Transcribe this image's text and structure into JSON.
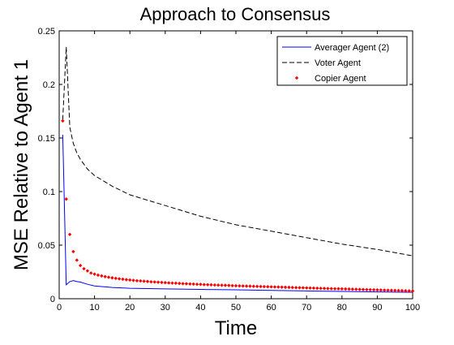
{
  "chart_data": {
    "type": "line",
    "title": "Approach to Consensus",
    "xlabel": "Time",
    "ylabel": "MSE Relative to Agent 1",
    "xlim": [
      0,
      100
    ],
    "ylim": [
      0,
      0.25
    ],
    "xticks": [
      0,
      10,
      20,
      30,
      40,
      50,
      60,
      70,
      80,
      90,
      100
    ],
    "yticks": [
      0,
      0.05,
      0.1,
      0.15,
      0.2,
      0.25
    ],
    "xtick_labels": [
      "0",
      "10",
      "20",
      "30",
      "40",
      "50",
      "60",
      "70",
      "80",
      "90",
      "100"
    ],
    "ytick_labels": [
      "0",
      "0.05",
      "0.1",
      "0.15",
      "0.2",
      "0.25"
    ],
    "grid": false,
    "legend_position": "top-right",
    "series": [
      {
        "name": "Averager Agent (2)",
        "style": "solid-line",
        "color": "#0000ff",
        "x": [
          1,
          2,
          3,
          4,
          5,
          6,
          8,
          10,
          15,
          20,
          30,
          40,
          50,
          60,
          70,
          80,
          90,
          100
        ],
        "y": [
          0.153,
          0.013,
          0.016,
          0.017,
          0.016,
          0.0155,
          0.0135,
          0.012,
          0.0105,
          0.0098,
          0.0092,
          0.0087,
          0.0083,
          0.0078,
          0.0073,
          0.0068,
          0.0064,
          0.006
        ]
      },
      {
        "name": "Voter Agent",
        "style": "dashed-line",
        "color": "#000000",
        "x": [
          1,
          2,
          3,
          4,
          5,
          6,
          8,
          10,
          15,
          20,
          25,
          30,
          40,
          50,
          60,
          70,
          80,
          90,
          95,
          100
        ],
        "y": [
          0.167,
          0.235,
          0.16,
          0.145,
          0.136,
          0.13,
          0.121,
          0.115,
          0.105,
          0.097,
          0.092,
          0.087,
          0.077,
          0.069,
          0.063,
          0.057,
          0.051,
          0.046,
          0.043,
          0.04
        ]
      },
      {
        "name": "Copier Agent",
        "style": "markers",
        "color": "#ff0000",
        "x": [
          1,
          2,
          3,
          4,
          5,
          6,
          7,
          8,
          9,
          10,
          11,
          12,
          13,
          14,
          15,
          16,
          17,
          18,
          19,
          20,
          21,
          22,
          23,
          24,
          25,
          26,
          27,
          28,
          29,
          30,
          31,
          32,
          33,
          34,
          35,
          36,
          37,
          38,
          39,
          40,
          41,
          42,
          43,
          44,
          45,
          46,
          47,
          48,
          49,
          50,
          51,
          52,
          53,
          54,
          55,
          56,
          57,
          58,
          59,
          60,
          61,
          62,
          63,
          64,
          65,
          66,
          67,
          68,
          69,
          70,
          71,
          72,
          73,
          74,
          75,
          76,
          77,
          78,
          79,
          80,
          81,
          82,
          83,
          84,
          85,
          86,
          87,
          88,
          89,
          90,
          91,
          92,
          93,
          94,
          95,
          96,
          97,
          98,
          99,
          100
        ],
        "y": [
          0.166,
          0.093,
          0.06,
          0.044,
          0.036,
          0.031,
          0.028,
          0.026,
          0.024,
          0.023,
          0.022,
          0.0213,
          0.0206,
          0.02,
          0.0195,
          0.019,
          0.0186,
          0.0182,
          0.0178,
          0.0175,
          0.0171,
          0.0168,
          0.0166,
          0.0163,
          0.0161,
          0.0158,
          0.0156,
          0.0154,
          0.0152,
          0.015,
          0.0148,
          0.0146,
          0.0145,
          0.0143,
          0.0141,
          0.014,
          0.0138,
          0.0137,
          0.0135,
          0.0134,
          0.0132,
          0.0131,
          0.013,
          0.0128,
          0.0127,
          0.0126,
          0.0125,
          0.0124,
          0.0122,
          0.0121,
          0.012,
          0.0119,
          0.0118,
          0.0117,
          0.0116,
          0.0115,
          0.0114,
          0.0113,
          0.0112,
          0.0111,
          0.011,
          0.0109,
          0.0108,
          0.0107,
          0.0106,
          0.0105,
          0.0104,
          0.0103,
          0.0102,
          0.0101,
          0.01,
          0.0099,
          0.0098,
          0.0097,
          0.0096,
          0.0095,
          0.0094,
          0.0093,
          0.0093,
          0.0092,
          0.0091,
          0.009,
          0.0089,
          0.0088,
          0.0087,
          0.0086,
          0.0085,
          0.0084,
          0.0083,
          0.0082,
          0.0081,
          0.008,
          0.0079,
          0.0078,
          0.0077,
          0.0076,
          0.0075,
          0.0074,
          0.0073,
          0.0072
        ]
      }
    ]
  }
}
